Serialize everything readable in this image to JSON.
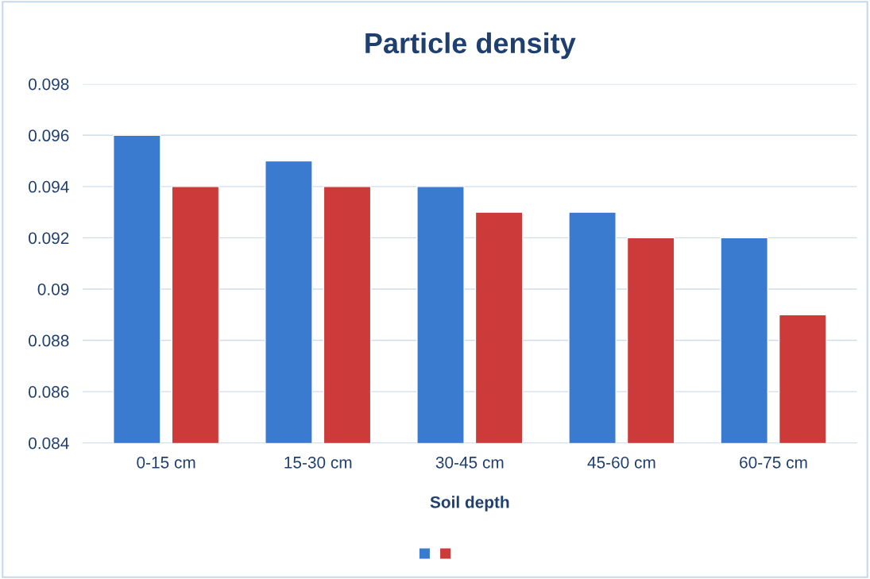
{
  "chart_data": {
    "type": "bar",
    "title": "Particle density",
    "xlabel": "Soil depth",
    "categories": [
      "0-15 cm",
      "15-30 cm",
      "30-45 cm",
      "45-60 cm",
      "60-75 cm"
    ],
    "series": [
      {
        "color": "#3a7bd0",
        "values": [
          0.096,
          0.095,
          0.094,
          0.093,
          0.092
        ]
      },
      {
        "color": "#cc3a3a",
        "values": [
          0.094,
          0.094,
          0.093,
          0.092,
          0.089
        ]
      }
    ],
    "ylim": [
      0.084,
      0.098
    ],
    "yticks": [
      0.084,
      0.086,
      0.088,
      0.09,
      0.092,
      0.094,
      0.096,
      0.098
    ],
    "grid": "y"
  }
}
